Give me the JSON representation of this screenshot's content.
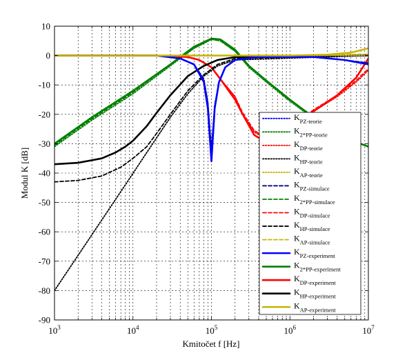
{
  "chart_data": {
    "type": "line",
    "xscale": "log",
    "xlim": [
      1000,
      10000000
    ],
    "ylim": [
      -90,
      10
    ],
    "xlabel": "Kmitočet f [Hz]",
    "ylabel": "Modul K [dB]",
    "grid": true,
    "legend_position": "right",
    "x_ticks": [
      {
        "base": "10",
        "exp": "3"
      },
      {
        "base": "10",
        "exp": "4"
      },
      {
        "base": "10",
        "exp": "5"
      },
      {
        "base": "10",
        "exp": "6"
      },
      {
        "base": "10",
        "exp": "7"
      }
    ],
    "y_ticks": [
      10,
      0,
      -10,
      -20,
      -30,
      -40,
      -50,
      -60,
      -70,
      -80,
      -90
    ],
    "legend": [
      {
        "main": "K",
        "sub": "PZ-teorie",
        "color": "#0000ff",
        "style": "dotted"
      },
      {
        "main": "K",
        "sub": "2*PP-teorie",
        "color": "#008000",
        "style": "dotted"
      },
      {
        "main": "K",
        "sub": "DP-teorie",
        "color": "#ff0000",
        "style": "dotted"
      },
      {
        "main": "K",
        "sub": "HP-teorie",
        "color": "#000000",
        "style": "dotted"
      },
      {
        "main": "K",
        "sub": "AP-teorie",
        "color": "#c8b400",
        "style": "dotted"
      },
      {
        "main": "K",
        "sub": "PZ-simulace",
        "color": "#000080",
        "style": "dashed"
      },
      {
        "main": "K",
        "sub": "2*PP-simulace",
        "color": "#008000",
        "style": "dashed"
      },
      {
        "main": "K",
        "sub": "DP-simulace",
        "color": "#ff0000",
        "style": "dashed"
      },
      {
        "main": "K",
        "sub": "HP-simulace",
        "color": "#000000",
        "style": "dashed"
      },
      {
        "main": "K",
        "sub": "AP-simulace",
        "color": "#c8b400",
        "style": "dashed"
      },
      {
        "main": "K",
        "sub": "PZ-experiment",
        "color": "#0000ff",
        "style": "solid"
      },
      {
        "main": "K",
        "sub": "2*PP-experiment",
        "color": "#008000",
        "style": "solid"
      },
      {
        "main": "K",
        "sub": "DP-experiment",
        "color": "#ff0000",
        "style": "solid"
      },
      {
        "main": "K",
        "sub": "HP-experiment",
        "color": "#000000",
        "style": "solid"
      },
      {
        "main": "K",
        "sub": "AP-experiment",
        "color": "#c8b400",
        "style": "solid"
      }
    ],
    "series": [
      {
        "name": "K_2*PP-teorie",
        "color": "#008000",
        "style": "dotted",
        "x": [
          1000,
          3000,
          10000,
          30000,
          60000,
          100000,
          130000,
          200000,
          300000,
          500000,
          1000000,
          2000000,
          3000000,
          5000000,
          10000000
        ],
        "y": [
          -31,
          -22,
          -13,
          -3.5,
          2.5,
          5.5,
          5,
          1.5,
          -4,
          -9,
          -15.5,
          -21.5,
          -25,
          -28.5,
          -31
        ]
      },
      {
        "name": "K_2*PP-simulace",
        "color": "#008000",
        "style": "dashed",
        "x": [
          1000,
          3000,
          10000,
          30000,
          60000,
          100000,
          130000,
          200000,
          300000,
          500000,
          1000000,
          2000000,
          3000000,
          5000000,
          10000000
        ],
        "y": [
          -30.5,
          -21.5,
          -12.5,
          -3,
          2.5,
          5.5,
          5,
          1.5,
          -3.5,
          -8.5,
          -15,
          -21,
          -24.5,
          -28,
          -31
        ]
      },
      {
        "name": "K_2*PP-experiment",
        "color": "#008000",
        "style": "solid",
        "x": [
          1000,
          3000,
          10000,
          30000,
          60000,
          100000,
          130000,
          200000,
          300000,
          500000,
          1000000,
          2000000,
          3000000,
          5000000,
          10000000
        ],
        "y": [
          -30,
          -21,
          -12,
          -3,
          3,
          5.8,
          5.5,
          2,
          -3.5,
          -8.5,
          -15,
          -21,
          -24.5,
          -28,
          -31
        ]
      },
      {
        "name": "K_DP-teorie",
        "color": "#ff0000",
        "style": "dotted",
        "x": [
          1000,
          20000,
          50000,
          70000,
          100000,
          130000,
          200000,
          250000,
          350000,
          500000,
          700000,
          1000000,
          2000000,
          4000000,
          7000000,
          10000000
        ],
        "y": [
          0,
          0,
          -0.5,
          -1.5,
          -4,
          -8,
          -14,
          -20,
          -26,
          -28.5,
          -28,
          -25,
          -19,
          -14,
          -9,
          -5
        ]
      },
      {
        "name": "K_DP-simulace",
        "color": "#ff0000",
        "style": "dashed",
        "x": [
          1000,
          20000,
          50000,
          70000,
          100000,
          130000,
          200000,
          250000,
          350000,
          500000,
          700000,
          1000000,
          2000000,
          4000000,
          7000000,
          10000000
        ],
        "y": [
          0,
          0,
          -0.5,
          -1.5,
          -4,
          -8,
          -14,
          -19.5,
          -25.5,
          -28,
          -27.5,
          -24.5,
          -18.5,
          -13.5,
          -8.5,
          -4.5
        ]
      },
      {
        "name": "K_DP-experiment",
        "color": "#ff0000",
        "style": "solid",
        "x": [
          1000,
          20000,
          50000,
          70000,
          100000,
          130000,
          200000,
          250000,
          350000,
          400000,
          500000,
          700000,
          1000000,
          2000000,
          4000000,
          7000000,
          10000000
        ],
        "y": [
          0,
          0,
          -0.5,
          -1.5,
          -4,
          -8,
          -15,
          -20,
          -27,
          -28,
          -28.5,
          -28,
          -24.5,
          -19,
          -13.5,
          -7.5,
          -1
        ]
      },
      {
        "name": "K_HP-teorie",
        "color": "#000000",
        "style": "dotted",
        "x": [
          1000,
          2000,
          4000,
          8000,
          15000,
          30000,
          50000,
          80000,
          120000,
          200000,
          10000000
        ],
        "y": [
          -80,
          -68,
          -56,
          -44,
          -33,
          -21,
          -13,
          -7,
          -3.5,
          -1.5,
          0
        ]
      },
      {
        "name": "K_HP-simulace",
        "color": "#000000",
        "style": "dashed",
        "x": [
          1000,
          2000,
          4000,
          7000,
          10000,
          15000,
          20000,
          30000,
          50000,
          80000,
          120000,
          200000,
          10000000
        ],
        "y": [
          -43,
          -42.5,
          -41,
          -38,
          -35,
          -31,
          -26.5,
          -20,
          -12,
          -6.5,
          -3,
          -1,
          0
        ]
      },
      {
        "name": "K_HP-experiment",
        "color": "#000000",
        "style": "solid",
        "x": [
          1000,
          2000,
          4000,
          6000,
          8000,
          10000,
          15000,
          20000,
          30000,
          50000,
          80000,
          120000,
          200000,
          10000000
        ],
        "y": [
          -37,
          -36.5,
          -35,
          -33,
          -31,
          -29,
          -24,
          -19.5,
          -13.5,
          -7,
          -3.5,
          -1.5,
          -0.5,
          0
        ]
      },
      {
        "name": "K_PZ-teorie",
        "color": "#0000ff",
        "style": "dotted",
        "x": [
          1000,
          20000,
          40000,
          60000,
          80000,
          90000,
          100000,
          110000,
          125000,
          150000,
          200000,
          400000,
          10000000
        ],
        "y": [
          0,
          0,
          -1,
          -3,
          -8,
          -16,
          -32,
          -17,
          -9,
          -4,
          -1.5,
          -0.2,
          0
        ]
      },
      {
        "name": "K_PZ-simulace",
        "color": "#000080",
        "style": "dashed",
        "x": [
          1000,
          20000,
          40000,
          60000,
          80000,
          90000,
          100000,
          110000,
          125000,
          150000,
          200000,
          400000,
          2000000,
          5000000,
          10000000
        ],
        "y": [
          0,
          0,
          -1,
          -3,
          -8,
          -16,
          -32,
          -17,
          -9,
          -4,
          -1.5,
          -0.5,
          -0.5,
          -1.5,
          -2.5
        ]
      },
      {
        "name": "K_PZ-experiment",
        "color": "#0000ff",
        "style": "solid",
        "x": [
          1000,
          20000,
          40000,
          60000,
          80000,
          90000,
          100000,
          110000,
          125000,
          150000,
          200000,
          400000,
          2000000,
          5000000,
          10000000
        ],
        "y": [
          0,
          0,
          -1,
          -3,
          -9,
          -18,
          -36,
          -18,
          -9,
          -4,
          -1.5,
          -0.5,
          -0.5,
          -1.5,
          -3
        ]
      },
      {
        "name": "K_AP-teorie",
        "color": "#c8b400",
        "style": "dotted",
        "x": [
          1000,
          10000,
          100000,
          1000000,
          10000000
        ],
        "y": [
          0,
          0,
          0,
          0,
          0
        ]
      },
      {
        "name": "K_AP-simulace",
        "color": "#c8b400",
        "style": "dashed",
        "x": [
          1000,
          10000,
          100000,
          1000000,
          3000000,
          10000000
        ],
        "y": [
          0,
          0,
          0,
          0,
          0.2,
          0.5
        ]
      },
      {
        "name": "K_AP-experiment",
        "color": "#c8b400",
        "style": "solid",
        "x": [
          1000,
          10000,
          100000,
          1000000,
          3000000,
          6000000,
          10000000
        ],
        "y": [
          0,
          0,
          0,
          0,
          0.3,
          1,
          2.5
        ]
      }
    ]
  }
}
